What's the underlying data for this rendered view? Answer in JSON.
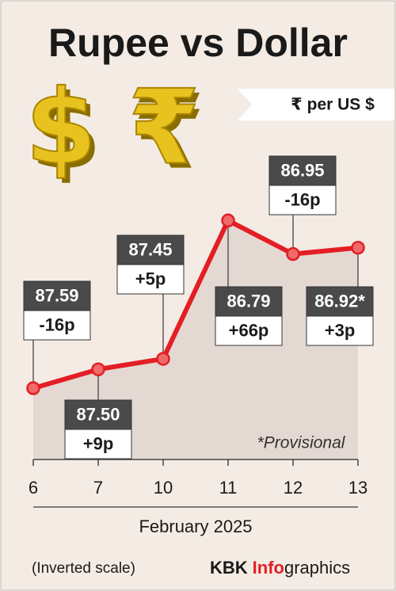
{
  "chart_data": {
    "type": "line",
    "title": "Rupee vs Dollar",
    "subtitle": "₹ per US $",
    "categories": [
      "6",
      "7",
      "10",
      "11",
      "12",
      "13"
    ],
    "series": [
      {
        "name": "Rupee per US $",
        "color": "#e31e24",
        "values": [
          87.59,
          87.5,
          87.45,
          86.79,
          86.95,
          86.92
        ],
        "value_labels": [
          "87.59",
          "87.50",
          "87.45",
          "86.79",
          "86.95",
          "86.92*"
        ],
        "changes": [
          "-16p",
          "+9p",
          "+5p",
          "+66p",
          "-16p",
          "+3p"
        ]
      }
    ],
    "ylim": [
      86.6,
      87.93
    ],
    "y_inverted": true,
    "xlabel": "February 2025",
    "note": "*Provisional",
    "scale_note": "(Inverted scale)",
    "credit": [
      "KBK",
      "Info",
      "graphics"
    ]
  }
}
